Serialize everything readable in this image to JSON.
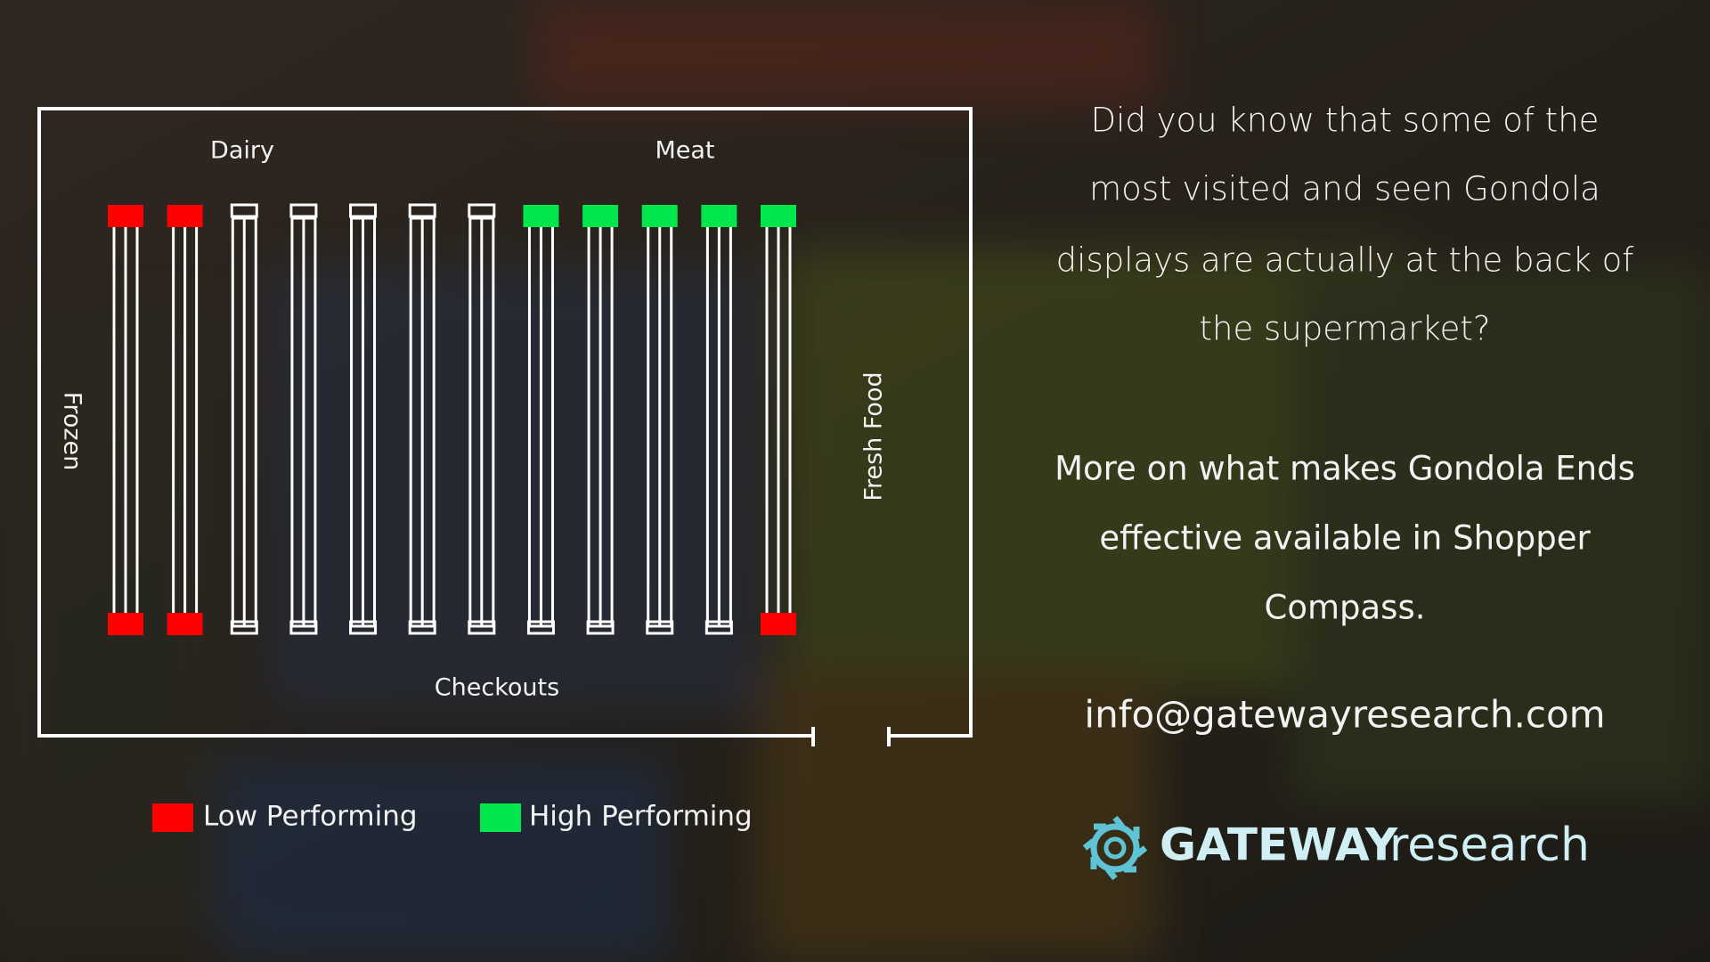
{
  "map": {
    "labels": {
      "top_left": "Dairy",
      "top_right": "Meat",
      "left": "Frozen",
      "right": "Fresh Food",
      "bottom": "Checkouts"
    },
    "gondolas": [
      {
        "top": "#ff0000",
        "bottom": "#ff0000"
      },
      {
        "top": "#ff0000",
        "bottom": "#ff0000"
      },
      {
        "top": null,
        "bottom": null
      },
      {
        "top": null,
        "bottom": null
      },
      {
        "top": null,
        "bottom": null
      },
      {
        "top": null,
        "bottom": null
      },
      {
        "top": null,
        "bottom": null
      },
      {
        "top": "#00e64d",
        "bottom": null
      },
      {
        "top": "#00e64d",
        "bottom": null
      },
      {
        "top": "#00e64d",
        "bottom": null
      },
      {
        "top": "#00e64d",
        "bottom": null
      },
      {
        "top": "#00e64d",
        "bottom": "#ff0000"
      }
    ]
  },
  "legend": [
    {
      "label": "Low Performing",
      "color": "#ff0000"
    },
    {
      "label": "High Performing",
      "color": "#00e64d"
    }
  ],
  "text": {
    "paragraph1": [
      "Did you know that some of the",
      "most visited and seen Gondola",
      "displays are actually at the back of",
      "the supermarket?"
    ],
    "paragraph2": [
      "More on what makes Gondola Ends",
      "effective available in Shopper",
      "Compass."
    ],
    "email": "info@gatewayresearch.com"
  },
  "logo": {
    "bold": "GATEWAY",
    "light": "research"
  }
}
